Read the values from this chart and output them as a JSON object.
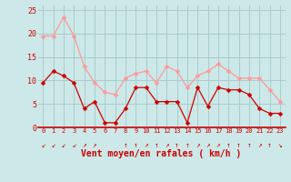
{
  "x": [
    0,
    1,
    2,
    3,
    4,
    5,
    6,
    7,
    8,
    9,
    10,
    11,
    12,
    13,
    14,
    15,
    16,
    17,
    18,
    19,
    20,
    21,
    22,
    23
  ],
  "wind_mean": [
    9.5,
    12,
    11,
    9.5,
    4,
    5.5,
    1,
    1,
    4,
    8.5,
    8.5,
    5.5,
    5.5,
    5.5,
    1,
    8.5,
    4.5,
    8.5,
    8,
    8,
    7,
    4,
    3,
    3
  ],
  "wind_gust": [
    19.5,
    19.5,
    23.5,
    19.5,
    13,
    9.5,
    7.5,
    7,
    10.5,
    11.5,
    12,
    9.5,
    13,
    12,
    8.5,
    11,
    12,
    13.5,
    12,
    10.5,
    10.5,
    10.5,
    8,
    5.5
  ],
  "mean_color": "#cc0000",
  "gust_color": "#ff9999",
  "bg_color": "#cce8e8",
  "grid_color": "#aacccc",
  "axis_color": "#cc0000",
  "xlabel": "Vent moyen/en rafales ( km/h )",
  "ylim": [
    0,
    26
  ],
  "xlim": [
    -0.5,
    23.5
  ],
  "yticks": [
    0,
    5,
    10,
    15,
    20,
    25
  ],
  "xticks": [
    0,
    1,
    2,
    3,
    4,
    5,
    6,
    7,
    8,
    9,
    10,
    11,
    12,
    13,
    14,
    15,
    16,
    17,
    18,
    19,
    20,
    21,
    22,
    23
  ],
  "markersize": 2.5,
  "linewidth": 0.9,
  "arrow_row": [
    "↙",
    "↙",
    "↙",
    "↙",
    "↗",
    "↗",
    "",
    "",
    "↑",
    "↑",
    "↗",
    "↑",
    "↗",
    "↑",
    "↑",
    "↗",
    "↗",
    "↗",
    "↑",
    "↑",
    "↑",
    "↗",
    "↑",
    "↘"
  ]
}
